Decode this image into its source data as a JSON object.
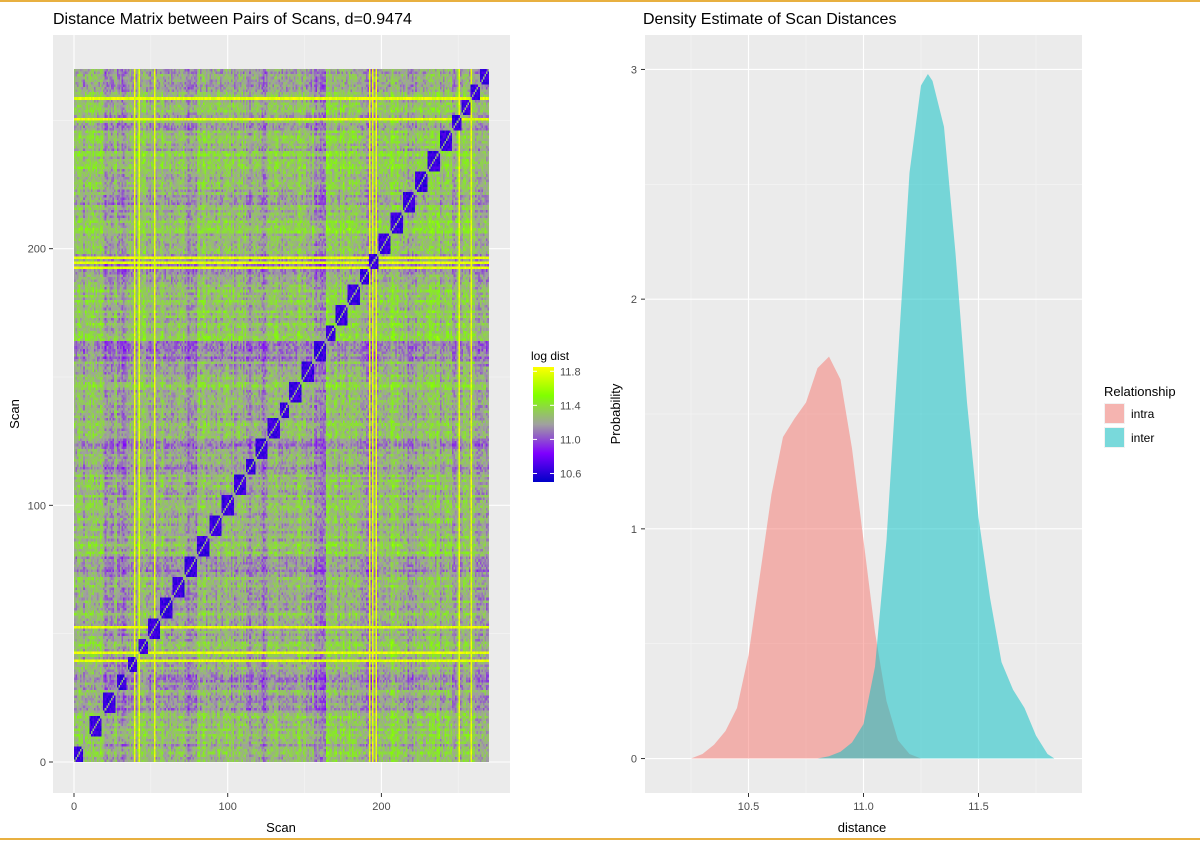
{
  "chart_data": [
    {
      "type": "heatmap",
      "title": "Distance Matrix between Pairs of Scans, d=0.9474",
      "xlabel": "Scan",
      "ylabel": "Scan",
      "xlim": [
        0,
        270
      ],
      "ylim": [
        0,
        270
      ],
      "x_ticks": [
        0,
        100,
        200
      ],
      "y_ticks": [
        0,
        100,
        200
      ],
      "n_scans": 270,
      "diagonal_blocks": [
        [
          0,
          6
        ],
        [
          10,
          18
        ],
        [
          19,
          27
        ],
        [
          28,
          34
        ],
        [
          35,
          41
        ],
        [
          42,
          48
        ],
        [
          48,
          56
        ],
        [
          56,
          64
        ],
        [
          64,
          72
        ],
        [
          72,
          80
        ],
        [
          80,
          88
        ],
        [
          88,
          96
        ],
        [
          96,
          104
        ],
        [
          104,
          112
        ],
        [
          112,
          118
        ],
        [
          118,
          126
        ],
        [
          126,
          134
        ],
        [
          134,
          140
        ],
        [
          140,
          148
        ],
        [
          148,
          156
        ],
        [
          156,
          164
        ],
        [
          164,
          170
        ],
        [
          170,
          178
        ],
        [
          178,
          186
        ],
        [
          186,
          192
        ],
        [
          192,
          198
        ],
        [
          198,
          206
        ],
        [
          206,
          214
        ],
        [
          214,
          222
        ],
        [
          222,
          230
        ],
        [
          230,
          238
        ],
        [
          238,
          246
        ],
        [
          246,
          252
        ],
        [
          252,
          258
        ],
        [
          258,
          264
        ],
        [
          264,
          270
        ]
      ],
      "bright_lines": [
        39,
        42,
        52,
        192,
        194,
        196,
        250,
        258
      ],
      "colorbar": {
        "title": "log dist",
        "ticks": [
          11.8,
          11.4,
          11.0,
          10.6
        ],
        "range": [
          10.5,
          11.85
        ],
        "colors": [
          "#0000c8",
          "#7f00ff",
          "#a0a0a0",
          "#80ff00",
          "#ffff00"
        ]
      },
      "grid": true
    },
    {
      "type": "area",
      "title": "Density Estimate of Scan Distances",
      "xlabel": "distance",
      "ylabel": "Probability",
      "xlim": [
        10.05,
        11.95
      ],
      "ylim": [
        -0.15,
        3.15
      ],
      "x_ticks": [
        "10.5",
        "11.0",
        "11.5"
      ],
      "y_ticks": [
        "0",
        "1",
        "2",
        "3"
      ],
      "legend_title": "Relationship",
      "legend_position": "right",
      "grid": true,
      "series": [
        {
          "name": "intra",
          "color": "#f8766d",
          "x": [
            10.25,
            10.3,
            10.35,
            10.4,
            10.45,
            10.5,
            10.55,
            10.6,
            10.65,
            10.7,
            10.75,
            10.8,
            10.85,
            10.9,
            10.95,
            11.0,
            11.05,
            11.1,
            11.15,
            11.2,
            11.25,
            11.3,
            11.35,
            11.4,
            11.45,
            11.5,
            11.55,
            11.6,
            11.65,
            11.7
          ],
          "y": [
            0.0,
            0.02,
            0.06,
            0.12,
            0.22,
            0.45,
            0.8,
            1.15,
            1.4,
            1.48,
            1.55,
            1.7,
            1.75,
            1.65,
            1.35,
            0.95,
            0.55,
            0.25,
            0.08,
            0.02,
            0.0,
            0.0,
            0.0,
            0.0,
            0.0,
            0.0,
            0.0,
            0.0,
            0.0,
            0.0
          ]
        },
        {
          "name": "inter",
          "color": "#00bfc4",
          "x": [
            10.8,
            10.85,
            10.9,
            10.95,
            11.0,
            11.05,
            11.1,
            11.15,
            11.2,
            11.25,
            11.28,
            11.3,
            11.35,
            11.4,
            11.45,
            11.5,
            11.55,
            11.6,
            11.65,
            11.7,
            11.75,
            11.8,
            11.83
          ],
          "y": [
            0.0,
            0.01,
            0.03,
            0.07,
            0.15,
            0.4,
            0.95,
            1.75,
            2.55,
            2.93,
            2.98,
            2.95,
            2.75,
            2.2,
            1.55,
            1.05,
            0.7,
            0.42,
            0.3,
            0.22,
            0.1,
            0.02,
            0.0
          ]
        }
      ]
    }
  ]
}
